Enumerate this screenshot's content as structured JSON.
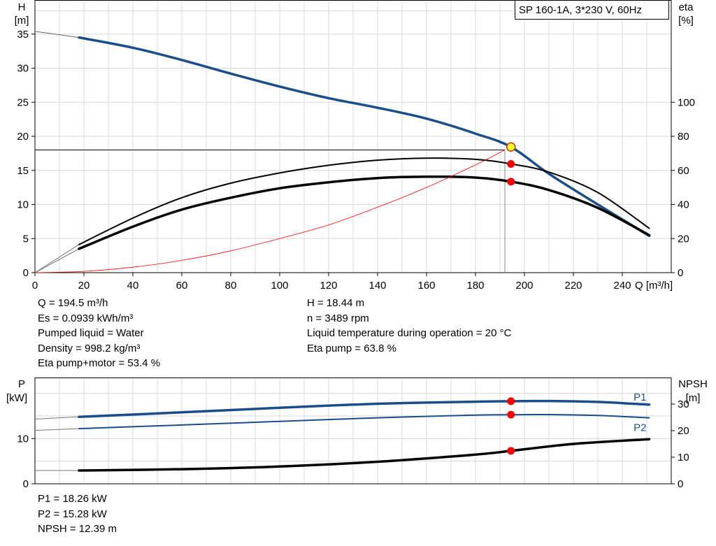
{
  "chart_data": [
    {
      "type": "line",
      "title": "SP 160-1A, 3*230 V, 60Hz",
      "xlabel": "Q [m³/h]",
      "ylabel_left": [
        "H",
        "[m]"
      ],
      "ylabel_right": [
        "eta",
        "[%]"
      ],
      "xlim": [
        0,
        260
      ],
      "ylim_left": [
        0,
        40
      ],
      "ylim_right": [
        0,
        160
      ],
      "x_ticks": [
        0,
        20,
        40,
        60,
        80,
        100,
        120,
        140,
        160,
        180,
        200,
        220,
        240
      ],
      "y_left_ticks": [
        0,
        5,
        10,
        15,
        20,
        25,
        30,
        35
      ],
      "y_right_ticks": [
        0,
        20,
        40,
        60,
        80,
        100
      ],
      "grid": true,
      "series": [
        {
          "kind": "head",
          "axis": "left",
          "color": "#1a4e8a",
          "x": [
            0,
            18,
            40,
            60,
            80,
            100,
            120,
            140,
            160,
            180,
            194.5,
            210,
            230,
            251
          ],
          "y": [
            35.4,
            34.5,
            33.0,
            31.2,
            29.2,
            27.3,
            25.6,
            24.2,
            22.6,
            20.4,
            18.44,
            14.5,
            10.0,
            5.4
          ]
        },
        {
          "kind": "efficiency-pump",
          "axis": "right",
          "color": "#000000",
          "x": [
            18,
            40,
            60,
            80,
            100,
            120,
            140,
            160,
            180,
            194.5,
            210,
            230,
            251
          ],
          "y": [
            16.5,
            32,
            44,
            52.5,
            58.5,
            63,
            66,
            67.2,
            66.5,
            63.8,
            59,
            47,
            26
          ]
        },
        {
          "kind": "efficiency-total",
          "axis": "right",
          "color": "#000000",
          "x": [
            18,
            40,
            60,
            80,
            100,
            120,
            140,
            160,
            180,
            194.5,
            210,
            230,
            251
          ],
          "y": [
            14,
            27,
            37,
            44,
            49.5,
            53,
            55.5,
            56.3,
            55.8,
            53.4,
            48.5,
            38,
            22
          ]
        },
        {
          "kind": "system-curve",
          "axis": "left",
          "color": "#ff0000",
          "x": [
            0,
            20,
            40,
            60,
            80,
            100,
            120,
            140,
            160,
            180,
            192
          ],
          "y": [
            0,
            0.2,
            0.8,
            1.8,
            3.2,
            5.0,
            7.0,
            9.6,
            12.5,
            15.8,
            18.0
          ]
        }
      ],
      "operating_point": {
        "q": 194.5,
        "h": 18.44,
        "eta_pump": 63.8,
        "eta_total": 53.4,
        "guide_q": 192,
        "guide_h": 18.0
      }
    },
    {
      "type": "line",
      "ylabel_left": [
        "P",
        "[kW]"
      ],
      "ylabel_right": [
        "NPSH",
        "[m]"
      ],
      "xlim": [
        0,
        260
      ],
      "ylim_left": [
        0,
        23.5
      ],
      "ylim_right": [
        0,
        40
      ],
      "y_left_ticks": [
        0,
        10
      ],
      "y_right_ticks": [
        0,
        10,
        20,
        30
      ],
      "grid": true,
      "series": [
        {
          "name": "P1",
          "axis": "left",
          "color": "#1a4e8a",
          "x": [
            0,
            18,
            60,
            100,
            140,
            180,
            194.5,
            210,
            230,
            251
          ],
          "y": [
            14.3,
            14.8,
            15.8,
            16.8,
            17.7,
            18.15,
            18.26,
            18.3,
            18.1,
            17.5
          ]
        },
        {
          "name": "P2",
          "axis": "left",
          "color": "#1a4e8a",
          "x": [
            0,
            18,
            60,
            100,
            140,
            180,
            194.5,
            210,
            230,
            251
          ],
          "y": [
            11.8,
            12.2,
            13.0,
            13.8,
            14.6,
            15.2,
            15.28,
            15.3,
            15.1,
            14.6
          ]
        },
        {
          "kind": "npsh",
          "axis": "right",
          "color": "#000000",
          "x": [
            0,
            18,
            60,
            100,
            140,
            180,
            194.5,
            220,
            251
          ],
          "y": [
            5.0,
            5.0,
            5.5,
            6.5,
            8.3,
            11.0,
            12.39,
            15.0,
            16.8
          ]
        }
      ],
      "operating_q": 194.5
    }
  ],
  "info_top_left": [
    "Q = 194.5 m³/h",
    "Es = 0.0939 kWh/m³",
    "Pumped liquid = Water",
    "Density = 998.2 kg/m³",
    "Eta pump+motor = 53.4 %"
  ],
  "info_top_right": [
    "H = 18.44 m",
    "n = 3489 rpm",
    "Liquid temperature during operation = 20 °C",
    "Eta pump = 63.8 %"
  ],
  "info_bottom": [
    "P1 = 18.26 kW",
    "P2 = 15.28 kW",
    "NPSH = 12.39 m"
  ]
}
